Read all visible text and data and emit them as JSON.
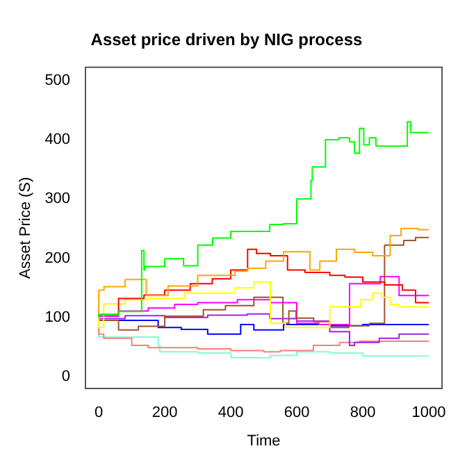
{
  "chart_data": {
    "type": "step",
    "title": "Asset price driven by NIG process",
    "xlabel": "Time",
    "ylabel": "Asset Price (S)",
    "xlim": [
      -40,
      1040
    ],
    "ylim": [
      -20,
      522
    ],
    "xticks": [
      0,
      200,
      400,
      600,
      800,
      1000
    ],
    "yticks": [
      0,
      100,
      200,
      300,
      400,
      500
    ],
    "grid": false,
    "legend": false,
    "marker": "none",
    "line_style": "solid",
    "series": [
      {
        "color": "#00ff00",
        "x": [
          0,
          60,
          130,
          137,
          140,
          200,
          257,
          300,
          345,
          400,
          518,
          560,
          600,
          643,
          647,
          687,
          728,
          760,
          775,
          790,
          803,
          820,
          840,
          935,
          945,
          960,
          1000
        ],
        "values": [
          100,
          105,
          110,
          213,
          180,
          186,
          199,
          187,
          222,
          234,
          245,
          257,
          258,
          300,
          331,
          354,
          400,
          403,
          396,
          377,
          419,
          391,
          403,
          389,
          430,
          412,
          412
        ]
      },
      {
        "color": "#ffa500",
        "x": [
          0,
          16,
          80,
          144,
          210,
          300,
          413,
          450,
          506,
          560,
          640,
          660,
          670,
          720,
          776,
          830,
          883,
          916,
          968,
          1000
        ],
        "values": [
          100,
          146,
          152,
          164,
          137,
          153,
          171,
          178,
          183,
          195,
          211,
          180,
          180,
          195,
          215,
          210,
          204,
          238,
          250,
          248
        ]
      },
      {
        "color": "#ff0000",
        "x": [
          0,
          60,
          137,
          200,
          277,
          344,
          400,
          451,
          478,
          520,
          572,
          625,
          700,
          746,
          800,
          866,
          920,
          960,
          1000
        ],
        "values": [
          100,
          105,
          132,
          138,
          146,
          157,
          165,
          180,
          215,
          208,
          204,
          180,
          176,
          171,
          168,
          160,
          155,
          146,
          125
        ]
      },
      {
        "color": "#ffff00",
        "x": [
          0,
          15,
          25,
          80,
          150,
          260,
          413,
          470,
          520,
          566,
          620,
          700,
          794,
          830,
          857,
          883,
          910,
          1000
        ],
        "values": [
          100,
          83,
          123,
          123,
          130,
          132,
          141,
          150,
          160,
          90,
          83,
          83,
          118,
          130,
          141,
          134,
          122,
          118
        ]
      },
      {
        "color": "#a0522d",
        "x": [
          0,
          60,
          120,
          200,
          317,
          384,
          470,
          558,
          576,
          598,
          651,
          700,
          758,
          820,
          866,
          924,
          960,
          1000
        ],
        "values": [
          100,
          95,
          79,
          85,
          102,
          113,
          120,
          134,
          90,
          111,
          99,
          93,
          83,
          86,
          90,
          222,
          230,
          235
        ]
      },
      {
        "color": "#ff00ff",
        "x": [
          0,
          60,
          150,
          230,
          300,
          420,
          520,
          600,
          667,
          760,
          853,
          910,
          970,
          1000
        ],
        "values": [
          100,
          102,
          111,
          116,
          122,
          125,
          130,
          125,
          90,
          88,
          157,
          169,
          137,
          137
        ]
      },
      {
        "color": "#a020f0",
        "x": [
          0,
          80,
          200,
          330,
          450,
          518,
          600,
          700,
          760,
          775,
          850,
          910,
          1000
        ],
        "values": [
          100,
          98,
          103,
          100,
          104,
          106,
          98,
          94,
          76,
          53,
          58,
          65,
          72
        ]
      },
      {
        "color": "#0000ff",
        "x": [
          0,
          60,
          180,
          250,
          330,
          430,
          470,
          560,
          600,
          700,
          800,
          1000
        ],
        "values": [
          100,
          95,
          95,
          83,
          80,
          72,
          88,
          79,
          88,
          88,
          86,
          88
        ]
      },
      {
        "color": "#fa8072",
        "x": [
          0,
          15,
          100,
          150,
          300,
          400,
          500,
          550,
          650,
          730,
          790,
          1000
        ],
        "values": [
          100,
          72,
          65,
          53,
          49,
          47,
          44,
          42,
          44,
          53,
          58,
          60
        ]
      },
      {
        "color": "#7fffd4",
        "x": [
          0,
          30,
          180,
          185,
          300,
          400,
          520,
          600,
          700,
          800,
          1000
        ],
        "values": [
          100,
          67,
          67,
          53,
          42,
          40,
          32,
          36,
          42,
          40,
          35
        ]
      }
    ]
  }
}
